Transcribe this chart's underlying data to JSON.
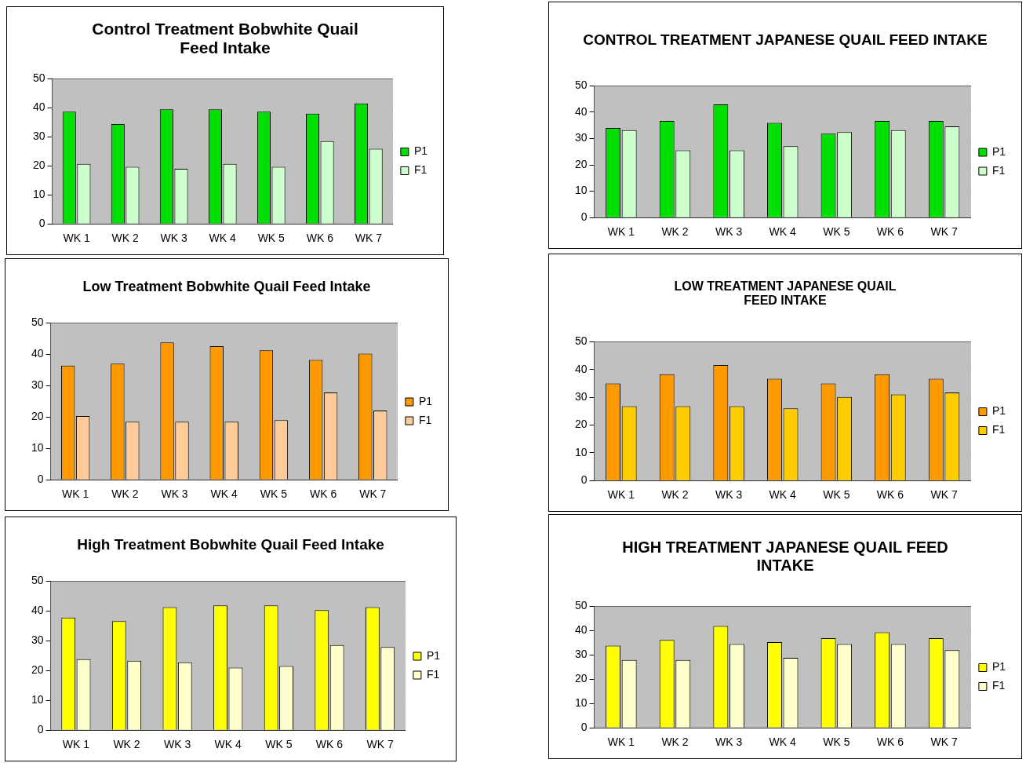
{
  "chart_data": [
    {
      "type": "bar",
      "title": "Control Treatment Bobwhite Quail Feed Intake",
      "categories": [
        "WK 1",
        "WK 2",
        "WK 3",
        "WK 4",
        "WK 5",
        "WK 6",
        "WK 7"
      ],
      "ylim": [
        0,
        50
      ],
      "yticks": [
        0,
        10,
        20,
        30,
        40,
        50
      ],
      "grid": "y",
      "legend": "right",
      "series": [
        {
          "name": "P1",
          "color": "#00e000",
          "values": [
            38.7,
            34.4,
            39.5,
            39.5,
            38.7,
            38.0,
            41.5
          ]
        },
        {
          "name": "F1",
          "color": "#ccffcc",
          "values": [
            20.7,
            19.7,
            19.0,
            20.7,
            19.7,
            28.5,
            25.9
          ]
        }
      ]
    },
    {
      "type": "bar",
      "title": "CONTROL TREATMENT JAPANESE QUAIL FEED INTAKE",
      "categories": [
        "WK 1",
        "WK 2",
        "WK 3",
        "WK 4",
        "WK 5",
        "WK 6",
        "WK 7"
      ],
      "ylim": [
        0,
        50
      ],
      "yticks": [
        0,
        10,
        20,
        30,
        40,
        50
      ],
      "grid": "y",
      "legend": "right",
      "series": [
        {
          "name": "P1",
          "color": "#00e000",
          "values": [
            34.0,
            36.7,
            43.0,
            36.0,
            31.9,
            36.7,
            36.7
          ]
        },
        {
          "name": "F1",
          "color": "#ccffcc",
          "values": [
            33.2,
            25.5,
            25.5,
            27.1,
            32.5,
            33.2,
            34.6
          ]
        }
      ]
    },
    {
      "type": "bar",
      "title": "Low Treatment Bobwhite Quail Feed Intake",
      "categories": [
        "WK 1",
        "WK 2",
        "WK 3",
        "WK 4",
        "WK 5",
        "WK 6",
        "WK 7"
      ],
      "ylim": [
        0,
        50
      ],
      "yticks": [
        0,
        10,
        20,
        30,
        40,
        50
      ],
      "grid": "y",
      "legend": "right",
      "series": [
        {
          "name": "P1",
          "color": "#ff9900",
          "values": [
            36.4,
            37.0,
            43.8,
            42.6,
            41.3,
            38.2,
            40.2
          ]
        },
        {
          "name": "F1",
          "color": "#ffcc99",
          "values": [
            20.3,
            18.5,
            18.5,
            18.5,
            19.0,
            27.8,
            22.1
          ]
        }
      ]
    },
    {
      "type": "bar",
      "title": "LOW TREATMENT JAPANESE QUAIL FEED INTAKE",
      "categories": [
        "WK 1",
        "WK 2",
        "WK 3",
        "WK 4",
        "WK 5",
        "WK 6",
        "WK 7"
      ],
      "ylim": [
        0,
        50
      ],
      "yticks": [
        0,
        10,
        20,
        30,
        40,
        50
      ],
      "grid": "y",
      "legend": "right",
      "series": [
        {
          "name": "P1",
          "color": "#ff9900",
          "values": [
            35.0,
            38.3,
            41.6,
            36.7,
            35.0,
            38.3,
            36.7
          ]
        },
        {
          "name": "F1",
          "color": "#ffcc00",
          "values": [
            26.8,
            26.8,
            26.8,
            26.0,
            30.1,
            31.0,
            31.7
          ]
        }
      ]
    },
    {
      "type": "bar",
      "title": "High Treatment Bobwhite Quail Feed Intake",
      "categories": [
        "WK 1",
        "WK 2",
        "WK 3",
        "WK 4",
        "WK 5",
        "WK 6",
        "WK 7"
      ],
      "ylim": [
        0,
        50
      ],
      "yticks": [
        0,
        10,
        20,
        30,
        40,
        50
      ],
      "grid": "y",
      "legend": "right",
      "series": [
        {
          "name": "P1",
          "color": "#ffff00",
          "values": [
            37.8,
            36.6,
            41.3,
            41.9,
            41.9,
            40.3,
            41.3
          ]
        },
        {
          "name": "F1",
          "color": "#ffffcc",
          "values": [
            23.8,
            23.3,
            22.8,
            21.0,
            21.5,
            28.6,
            27.9
          ]
        }
      ]
    },
    {
      "type": "bar",
      "title": "HIGH TREATMENT JAPANESE QUAIL FEED INTAKE",
      "categories": [
        "WK 1",
        "WK 2",
        "WK 3",
        "WK 4",
        "WK 5",
        "WK 6",
        "WK 7"
      ],
      "ylim": [
        0,
        50
      ],
      "yticks": [
        0,
        10,
        20,
        30,
        40,
        50
      ],
      "grid": "y",
      "legend": "right",
      "series": [
        {
          "name": "P1",
          "color": "#ffff00",
          "values": [
            33.8,
            36.2,
            41.9,
            35.3,
            36.9,
            39.3,
            36.9
          ]
        },
        {
          "name": "F1",
          "color": "#ffffcc",
          "values": [
            27.9,
            27.9,
            34.5,
            28.8,
            34.5,
            34.5,
            32.0
          ]
        }
      ]
    }
  ]
}
